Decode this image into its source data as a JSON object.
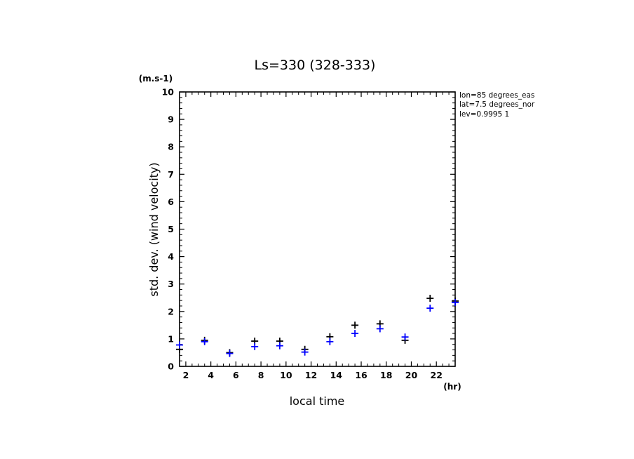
{
  "chart_data": {
    "type": "scatter",
    "title": "Ls=330 (328-333)",
    "xlabel": "local time",
    "ylabel": "std. dev. (wind velocity)",
    "x_unit": "(hr)",
    "y_unit": "(m.s-1)",
    "xlim": [
      1.5,
      23.5
    ],
    "ylim": [
      0,
      10
    ],
    "x_ticks": [
      2,
      4,
      6,
      8,
      10,
      12,
      14,
      16,
      18,
      20,
      22
    ],
    "y_ticks": [
      0,
      1,
      2,
      3,
      4,
      5,
      6,
      7,
      8,
      9,
      10
    ],
    "grid": false,
    "annotations": [
      "lon=85 degrees_eas",
      "lat=7.5 degrees_nor",
      "lev=0.9995 1"
    ],
    "series": [
      {
        "color": "#000000",
        "marker": "plus",
        "x": [
          1.5,
          3.5,
          5.5,
          7.5,
          9.5,
          11.5,
          13.5,
          15.5,
          17.5,
          19.5,
          21.5,
          23.5
        ],
        "values": [
          0.62,
          0.95,
          0.5,
          0.92,
          0.92,
          0.62,
          1.08,
          1.5,
          1.55,
          0.95,
          2.48,
          2.38
        ]
      },
      {
        "color": "#0000ff",
        "marker": "plus",
        "x": [
          1.5,
          3.5,
          5.5,
          7.5,
          9.5,
          11.5,
          13.5,
          15.5,
          17.5,
          19.5,
          21.5,
          23.5
        ],
        "values": [
          0.78,
          0.9,
          0.47,
          0.72,
          0.75,
          0.52,
          0.9,
          1.2,
          1.37,
          1.07,
          2.12,
          2.33
        ]
      }
    ]
  }
}
